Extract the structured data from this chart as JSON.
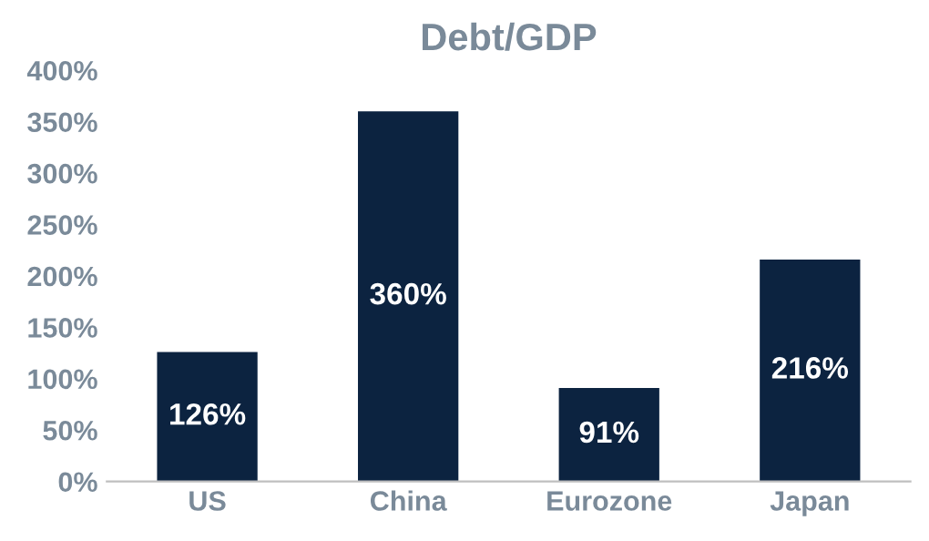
{
  "chart_data": {
    "type": "bar",
    "title": "Debt/GDP",
    "categories": [
      "US",
      "China",
      "Eurozone",
      "Japan"
    ],
    "values": [
      126,
      360,
      91,
      216
    ],
    "color": "#0c2340",
    "value_labels": [
      "126%",
      "360%",
      "91%",
      "216%"
    ],
    "ylim": [
      0,
      400
    ],
    "yticks": [
      {
        "value": 0,
        "label": "0%"
      },
      {
        "value": 50,
        "label": "50%"
      },
      {
        "value": 100,
        "label": "100%"
      },
      {
        "value": 150,
        "label": "150%"
      },
      {
        "value": 200,
        "label": "200%"
      },
      {
        "value": 250,
        "label": "250%"
      },
      {
        "value": 300,
        "label": "300%"
      },
      {
        "value": 350,
        "label": "350%"
      },
      {
        "value": 400,
        "label": "400%"
      }
    ],
    "grid": false,
    "legend": false
  }
}
